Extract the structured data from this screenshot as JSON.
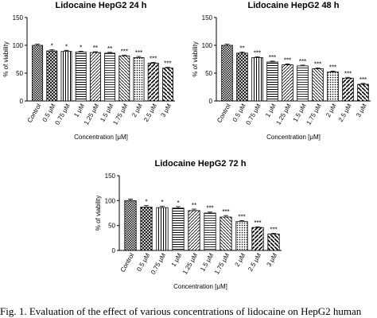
{
  "chart_data": [
    {
      "type": "bar",
      "title": "Lidocaine HepG2 24 h",
      "x_label": "Concentration [μM]",
      "y_label": "% of viability",
      "categories": [
        "Control",
        "0.5 μM",
        "0.75 μM",
        "1 μM",
        "1.25 μM",
        "1.5 μM",
        "1.75 μM",
        "2 μM",
        "2.5 μM",
        "3 μM"
      ],
      "values": [
        100,
        90,
        89,
        88,
        87,
        86,
        81,
        78,
        68,
        59
      ],
      "errors": [
        2,
        2,
        2,
        1.5,
        1.5,
        1.5,
        1.5,
        2,
        1.5,
        1.5
      ],
      "annotations": [
        null,
        "*",
        "*",
        "*",
        "**",
        "**",
        "***",
        "***",
        "***",
        "***"
      ],
      "ylim": [
        0,
        150
      ],
      "yticks": [
        0,
        50,
        100,
        150
      ]
    },
    {
      "type": "bar",
      "title": "Lidocaine HepG2 48 h",
      "x_label": "Concentration [μM]",
      "y_label": "% of viability",
      "categories": [
        "Control",
        "0.5 μM",
        "0.75 μM",
        "1 μM",
        "1.25 μM",
        "1.5 μM",
        "1.75 μM",
        "2 μM",
        "2.5 μM",
        "3 μM"
      ],
      "values": [
        100,
        86,
        78,
        70,
        65,
        63,
        58,
        52,
        41,
        30
      ],
      "errors": [
        2,
        2,
        1.5,
        1.5,
        1.5,
        1.5,
        1.5,
        1.5,
        1.5,
        1.5
      ],
      "annotations": [
        null,
        "**",
        "***",
        "***",
        "***",
        "***",
        "***",
        "***",
        "***",
        "***"
      ],
      "ylim": [
        0,
        150
      ],
      "yticks": [
        0,
        50,
        100,
        150
      ]
    },
    {
      "type": "bar",
      "title": "Lidocaine HepG2 72 h",
      "x_label": "Concentration [μM]",
      "y_label": "% of viability",
      "categories": [
        "Control",
        "0.5 μM",
        "0.75 μM",
        "1 μM",
        "1.25 μM",
        "1.5 μM",
        "1.75 μM",
        "2 μM",
        "2.5 μM",
        "3 μM"
      ],
      "values": [
        100,
        87,
        86,
        85,
        80,
        75,
        67,
        58,
        46,
        33
      ],
      "errors": [
        3,
        3,
        3,
        3,
        3,
        2,
        3,
        2,
        1.5,
        1.5
      ],
      "annotations": [
        null,
        "*",
        "*",
        "*",
        "**",
        "***",
        "***",
        "***",
        "***",
        "***"
      ],
      "ylim": [
        0,
        150
      ],
      "yticks": [
        0,
        50,
        100,
        150
      ]
    }
  ],
  "caption": "Fig. 1. Evaluation of the effect of various concentrations of lidocaine on HepG2 human"
}
